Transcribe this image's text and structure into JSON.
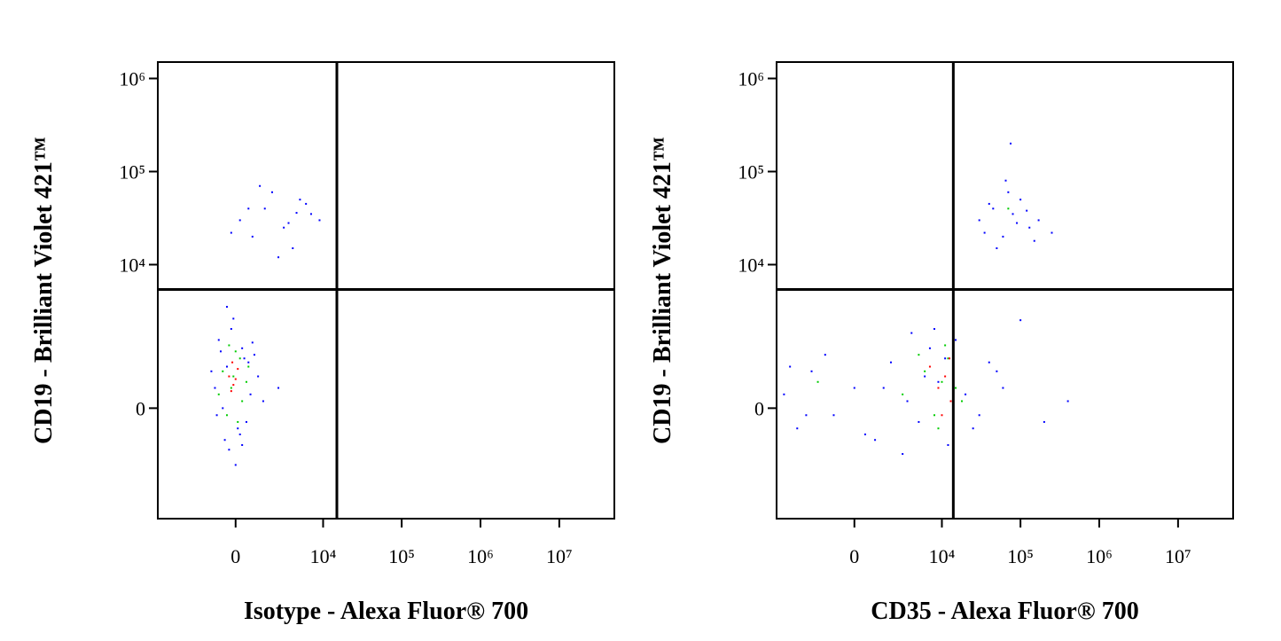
{
  "chart_data": [
    {
      "type": "scatter",
      "xlabel": "Isotype - Alexa Fluor® 700",
      "ylabel": "CD19 - Brilliant Violet 421™",
      "xscale": "biexponential",
      "yscale": "biexponential",
      "xlim": [
        -7500,
        50000000
      ],
      "ylim": [
        -4400,
        1500000
      ],
      "xticks": [
        0,
        {
          "value": 10000,
          "label": "10⁴"
        },
        {
          "value": 100000,
          "label": "10⁵"
        },
        {
          "value": 1000000,
          "label": "10⁶"
        },
        {
          "value": 10000000,
          "label": "10⁷"
        }
      ],
      "yticks": [
        0,
        {
          "value": 10000,
          "label": "10⁴"
        },
        {
          "value": 100000,
          "label": "10⁵"
        },
        {
          "value": 1000000,
          "label": "10⁶"
        }
      ],
      "gates": {
        "x": 15000,
        "y": 5400
      },
      "series": [
        {
          "color": "#0000ff",
          "x": [
            -800,
            -500,
            -200,
            100,
            400,
            700,
            -1000,
            -300,
            300,
            1100,
            -600,
            200,
            900,
            -1200,
            -100,
            500,
            1400,
            -400,
            0,
            800,
            2500,
            -700,
            300,
            -900,
            600,
            200,
            1500,
            3000,
            5000,
            7000,
            800,
            2000,
            4000,
            6000,
            9000,
            1200,
            2500,
            3500,
            600,
            -200,
            4500,
            -400
          ],
          "y": [
            1500,
            -500,
            2000,
            -300,
            900,
            200,
            300,
            -700,
            1200,
            500,
            0,
            -400,
            1000,
            600,
            2600,
            -200,
            100,
            700,
            -1100,
            1400,
            300,
            1100,
            -600,
            -100,
            800,
            30000,
            40000,
            25000,
            50000,
            35000,
            20000,
            60000,
            15000,
            45000,
            30000,
            70000,
            12000,
            28000,
            40000,
            22000,
            36000,
            3500
          ]
        },
        {
          "color": "#00cc00",
          "x": [
            -600,
            -200,
            200,
            500,
            -400,
            0,
            300,
            -800,
            100,
            -300,
            600,
            -100
          ],
          "y": [
            600,
            300,
            900,
            400,
            -100,
            1100,
            100,
            200,
            -200,
            1300,
            700,
            500
          ]
        },
        {
          "color": "#ff0000",
          "x": [
            -300,
            -100,
            100,
            -200,
            0,
            -150
          ],
          "y": [
            500,
            350,
            650,
            250,
            450,
            800
          ]
        }
      ]
    },
    {
      "type": "scatter",
      "xlabel": "CD35 - Alexa Fluor® 700",
      "ylabel": "CD19 - Brilliant Violet 421™",
      "xscale": "biexponential",
      "yscale": "biexponential",
      "xlim": [
        -7500,
        50000000
      ],
      "ylim": [
        -4400,
        1500000
      ],
      "xticks": [
        0,
        {
          "value": 10000,
          "label": "10⁴"
        },
        {
          "value": 100000,
          "label": "10⁵"
        },
        {
          "value": 1000000,
          "label": "10⁶"
        },
        {
          "value": 10000000,
          "label": "10⁷"
        }
      ],
      "yticks": [
        0,
        {
          "value": 10000,
          "label": "10⁴"
        },
        {
          "value": 100000,
          "label": "10⁵"
        },
        {
          "value": 1000000,
          "label": "10⁶"
        }
      ],
      "gates": {
        "x": 14000,
        "y": 5400
      },
      "series": [
        {
          "color": "#0000ff",
          "x": [
            -6000,
            -4000,
            -2500,
            -1000,
            0,
            1000,
            2000,
            3500,
            5000,
            7000,
            9000,
            12000,
            15000,
            20000,
            30000,
            40000,
            60000,
            -5000,
            -1500,
            500,
            3000,
            6000,
            8000,
            11000,
            25000,
            -3000,
            1500,
            4000,
            50000,
            200000,
            400000,
            100000,
            30000,
            45000,
            60000,
            80000,
            100000,
            130000,
            170000,
            50000,
            70000,
            90000,
            40000,
            120000,
            65000,
            35000,
            150000,
            75000,
            14000,
            250000
          ],
          "y": [
            200,
            -300,
            600,
            -100,
            300,
            -500,
            800,
            100,
            -200,
            1200,
            400,
            -600,
            1500,
            200,
            -100,
            800,
            300,
            700,
            1000,
            -400,
            -800,
            500,
            2000,
            900,
            -300,
            -100,
            300,
            1800,
            600,
            -200,
            100,
            2500,
            30000,
            40000,
            20000,
            35000,
            50000,
            25000,
            30000,
            15000,
            60000,
            28000,
            45000,
            38000,
            80000,
            22000,
            18000,
            200000,
            60000,
            22000
          ]
        },
        {
          "color": "#00cc00",
          "x": [
            3000,
            6000,
            8000,
            10000,
            12000,
            15000,
            5000,
            9000,
            -2000,
            18000,
            11000,
            70000
          ],
          "y": [
            200,
            600,
            -100,
            400,
            900,
            300,
            1000,
            -300,
            400,
            100,
            1300,
            40000
          ]
        },
        {
          "color": "#ff0000",
          "x": [
            9000,
            11000,
            13000,
            7000,
            10000,
            12500
          ],
          "y": [
            300,
            500,
            100,
            700,
            -100,
            900
          ]
        }
      ]
    }
  ]
}
